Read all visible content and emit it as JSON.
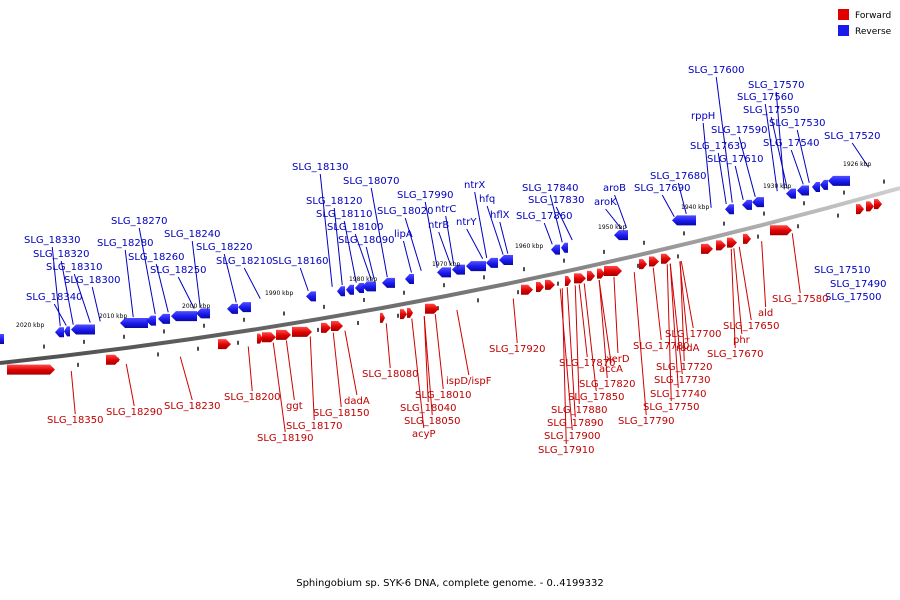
{
  "caption": "Sphingobium sp. SYK-6 DNA, complete genome. - 0..4199332",
  "legend": [
    {
      "label": "Forward",
      "color": "#e00000"
    },
    {
      "label": "Reverse",
      "color": "#1a1aee"
    }
  ],
  "colors": {
    "forward": "#e00000",
    "reverse": "#1a1aee",
    "axis": "#888888"
  },
  "kbp_ticks": [
    "2020 kbp",
    "2010 kbp",
    "2000 kbp",
    "1990 kbp",
    "1980 kbp",
    "1970 kbp",
    "1960 kbp",
    "1950 kbp",
    "1940 kbp",
    "1930 kbp",
    "1926 kbp"
  ],
  "reverse_labels": [
    "SLG_18330",
    "SLG_18320",
    "SLG_18310",
    "SLG_18300",
    "SLG_18340",
    "SLG_18270",
    "SLG_18280",
    "SLG_18260",
    "SLG_18250",
    "SLG_18240",
    "SLG_18220",
    "SLG_18210",
    "SLG_18160",
    "SLG_18130",
    "SLG_18070",
    "SLG_18120",
    "SLG_18110",
    "SLG_18100",
    "SLG_18090",
    "SLG_17990",
    "SLG_18020",
    "ntrC",
    "ntrB",
    "ntrY",
    "lipA",
    "ntrX",
    "hfq",
    "hflX",
    "SLG_17840",
    "SLG_17830",
    "SLG_17860",
    "aroB",
    "aroK",
    "SLG_17680",
    "SLG_17690",
    "SLG_17600",
    "SLG_17570",
    "SLG_17560",
    "SLG_17550",
    "rppH",
    "SLG_17530",
    "SLG_17590",
    "SLG_17630",
    "SLG_17540",
    "SLG_17520",
    "SLG_17610",
    "SLG_17510",
    "SLG_17490",
    "SLG_17500"
  ],
  "forward_labels": [
    "SLG_18350",
    "SLG_18290",
    "SLG_18230",
    "SLG_18200",
    "ggt",
    "SLG_18190",
    "SLG_18170",
    "SLG_18150",
    "dadA",
    "SLG_18080",
    "SLG_18010",
    "ispD/ispF",
    "SLG_18040",
    "SLG_18050",
    "acyP",
    "SLG_17920",
    "SLG_17870",
    "accA",
    "xerD",
    "SLG_17820",
    "SLG_17850",
    "SLG_17880",
    "SLG_17890",
    "SLG_17900",
    "SLG_17910",
    "SLG_17780",
    "SLG_17790",
    "SLG_17750",
    "SLG_17740",
    "SLG_17730",
    "SLG_17720",
    "radA",
    "SLG_17700",
    "SLG_17670",
    "phr",
    "SLG_17650",
    "ald",
    "SLG_17580"
  ]
}
